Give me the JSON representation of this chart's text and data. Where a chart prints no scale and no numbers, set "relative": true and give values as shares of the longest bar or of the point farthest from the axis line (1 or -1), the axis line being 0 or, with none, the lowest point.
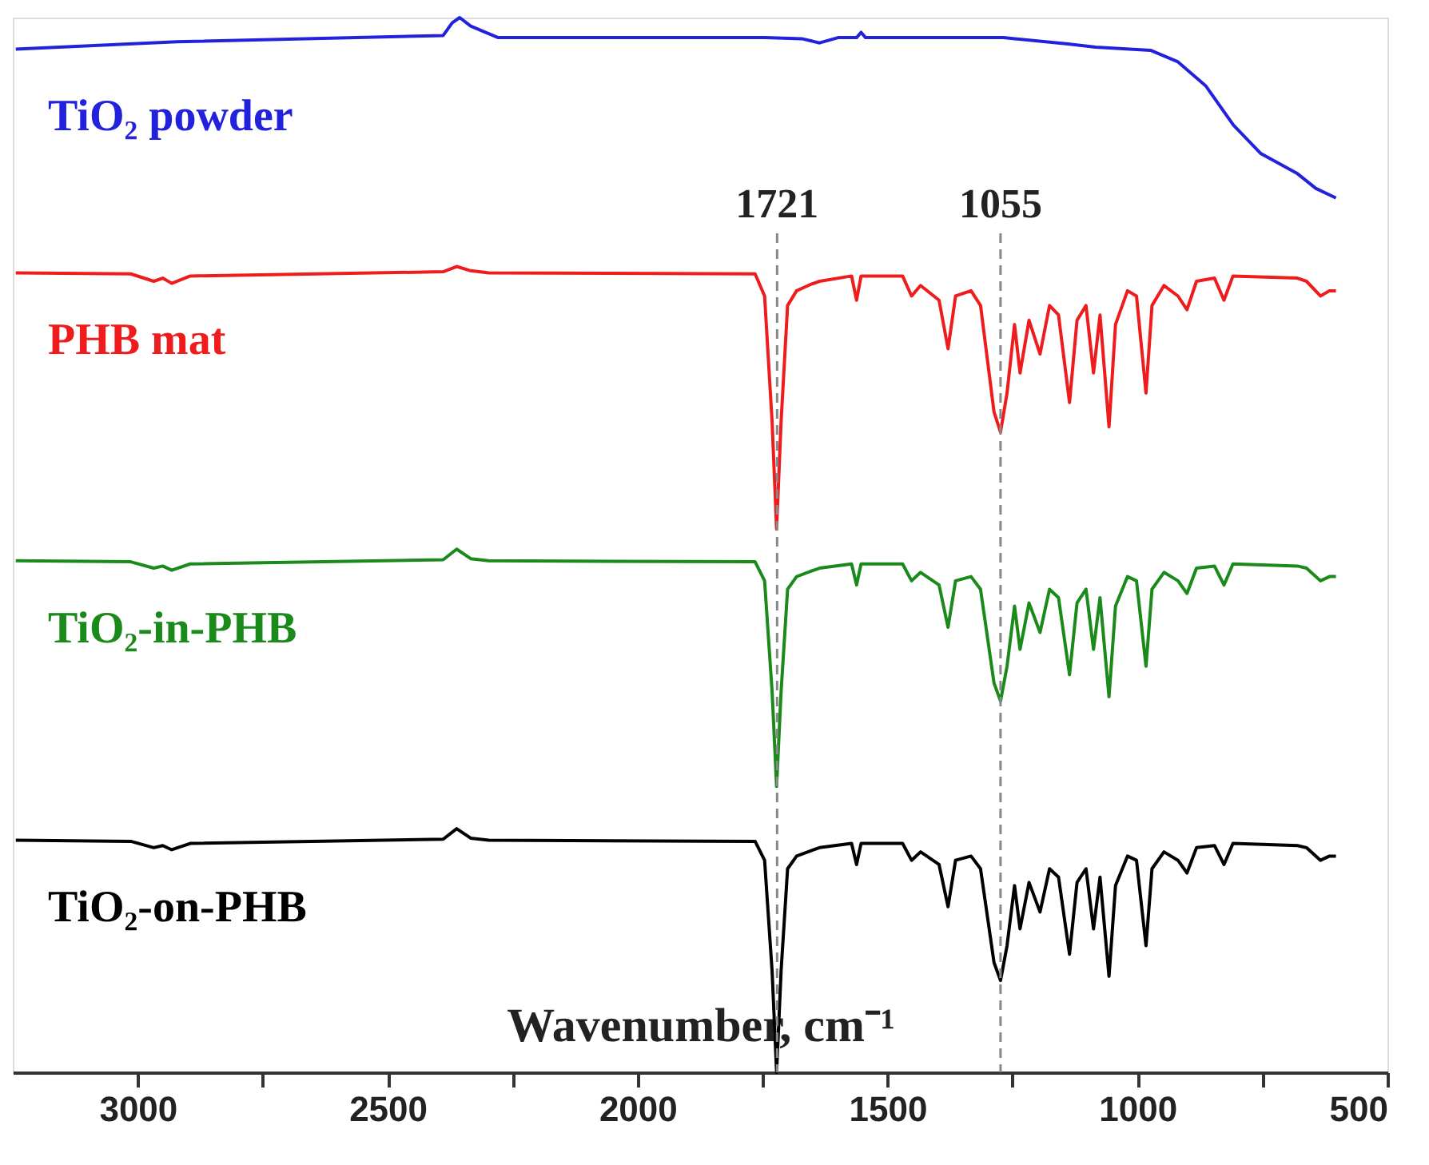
{
  "chart_data": {
    "type": "line",
    "relative": true,
    "xlabel": "Wavenumber, cm⁻¹",
    "annotations": [
      "1055"
    ],
    "xlim": [
      3250,
      500
    ],
    "xticks": [
      3000,
      {
        "value": 2750,
        "label": null
      },
      2500,
      {
        "value": 2250,
        "label": null
      },
      2000,
      {
        "value": 1750,
        "label": null
      },
      1500,
      {
        "value": 1250,
        "label": null
      },
      1000,
      {
        "value": 750,
        "label": null
      },
      500
    ],
    "x": [
      3244,
      3014,
      2968,
      2950,
      2932,
      2895,
      2389,
      2362,
      2334,
      2298,
      1765,
      1746,
      1731,
      1722,
      1713,
      1700,
      1682,
      1654,
      1636,
      1572,
      1562,
      1553,
      1470,
      1452,
      1434,
      1397,
      1379,
      1364,
      1333,
      1314,
      1287,
      1274,
      1261,
      1246,
      1235,
      1217,
      1195,
      1176,
      1158,
      1136,
      1121,
      1103,
      1088,
      1075,
      1057,
      1044,
      1020,
      1002,
      983,
      971,
      947,
      919,
      901,
      882,
      846,
      827,
      809,
      680,
      662,
      634,
      616,
      603
    ],
    "series": [
      {
        "name": "TiO₂ powder",
        "color": "#2222dd",
        "x": [
          3244,
          2922,
          2389,
          2371,
          2356,
          2334,
          2279,
          2150,
          1746,
          1672,
          1636,
          1599,
          1562,
          1553,
          1544,
          1268,
          1139,
          1084,
          974,
          919,
          863,
          808,
          753,
          680,
          643,
          603
        ],
        "values": [
          0.97,
          0.977,
          0.983,
          0.995,
          1.0,
          0.992,
          0.981,
          0.981,
          0.981,
          0.98,
          0.976,
          0.981,
          0.981,
          0.986,
          0.981,
          0.981,
          0.975,
          0.972,
          0.969,
          0.958,
          0.935,
          0.898,
          0.871,
          0.852,
          0.838,
          0.829
        ]
      },
      {
        "name": "PHB mat",
        "color": "#ee1c1c",
        "values": [
          0.758,
          0.757,
          0.75,
          0.753,
          0.748,
          0.755,
          0.759,
          0.764,
          0.76,
          0.758,
          0.757,
          0.736,
          0.617,
          0.515,
          0.617,
          0.727,
          0.741,
          0.747,
          0.75,
          0.755,
          0.732,
          0.755,
          0.755,
          0.736,
          0.746,
          0.732,
          0.686,
          0.736,
          0.741,
          0.727,
          0.626,
          0.607,
          0.644,
          0.709,
          0.663,
          0.713,
          0.681,
          0.727,
          0.718,
          0.635,
          0.713,
          0.727,
          0.663,
          0.718,
          0.612,
          0.709,
          0.741,
          0.736,
          0.644,
          0.727,
          0.746,
          0.736,
          0.723,
          0.75,
          0.753,
          0.732,
          0.755,
          0.753,
          0.75,
          0.736,
          0.741,
          0.741
        ]
      },
      {
        "name": "TiO₂-in-PHB",
        "color": "#1a8a1a",
        "values": [
          0.485,
          0.484,
          0.478,
          0.48,
          0.476,
          0.482,
          0.486,
          0.496,
          0.487,
          0.485,
          0.484,
          0.466,
          0.361,
          0.271,
          0.361,
          0.458,
          0.47,
          0.475,
          0.478,
          0.482,
          0.462,
          0.482,
          0.482,
          0.466,
          0.474,
          0.462,
          0.422,
          0.466,
          0.47,
          0.458,
          0.369,
          0.352,
          0.385,
          0.442,
          0.401,
          0.445,
          0.417,
          0.458,
          0.45,
          0.377,
          0.445,
          0.458,
          0.401,
          0.45,
          0.356,
          0.442,
          0.47,
          0.466,
          0.385,
          0.458,
          0.474,
          0.466,
          0.454,
          0.478,
          0.48,
          0.462,
          0.482,
          0.48,
          0.478,
          0.466,
          0.47,
          0.47
        ]
      },
      {
        "name": "TiO₂-on-PHB",
        "color": "#000000",
        "values": [
          0.22,
          0.219,
          0.213,
          0.215,
          0.211,
          0.217,
          0.221,
          0.231,
          0.222,
          0.22,
          0.219,
          0.201,
          0.096,
          0.0,
          0.096,
          0.193,
          0.205,
          0.21,
          0.213,
          0.217,
          0.197,
          0.217,
          0.217,
          0.201,
          0.209,
          0.197,
          0.157,
          0.201,
          0.205,
          0.193,
          0.104,
          0.087,
          0.12,
          0.177,
          0.136,
          0.18,
          0.152,
          0.193,
          0.185,
          0.112,
          0.18,
          0.193,
          0.136,
          0.185,
          0.091,
          0.177,
          0.205,
          0.201,
          0.12,
          0.193,
          0.209,
          0.201,
          0.189,
          0.213,
          0.215,
          0.197,
          0.217,
          0.215,
          0.213,
          0.201,
          0.205,
          0.205
        ]
      }
    ],
    "ref_lines": [
      {
        "axis": "x",
        "value": 1721,
        "label": "1721",
        "color": "#888888",
        "line_style": "dashed"
      },
      {
        "axis": "x",
        "value": 1274,
        "color": "#888888",
        "line_style": "dashed"
      }
    ],
    "grid": false,
    "legend": false,
    "line_style": "solid",
    "marker": "none"
  }
}
